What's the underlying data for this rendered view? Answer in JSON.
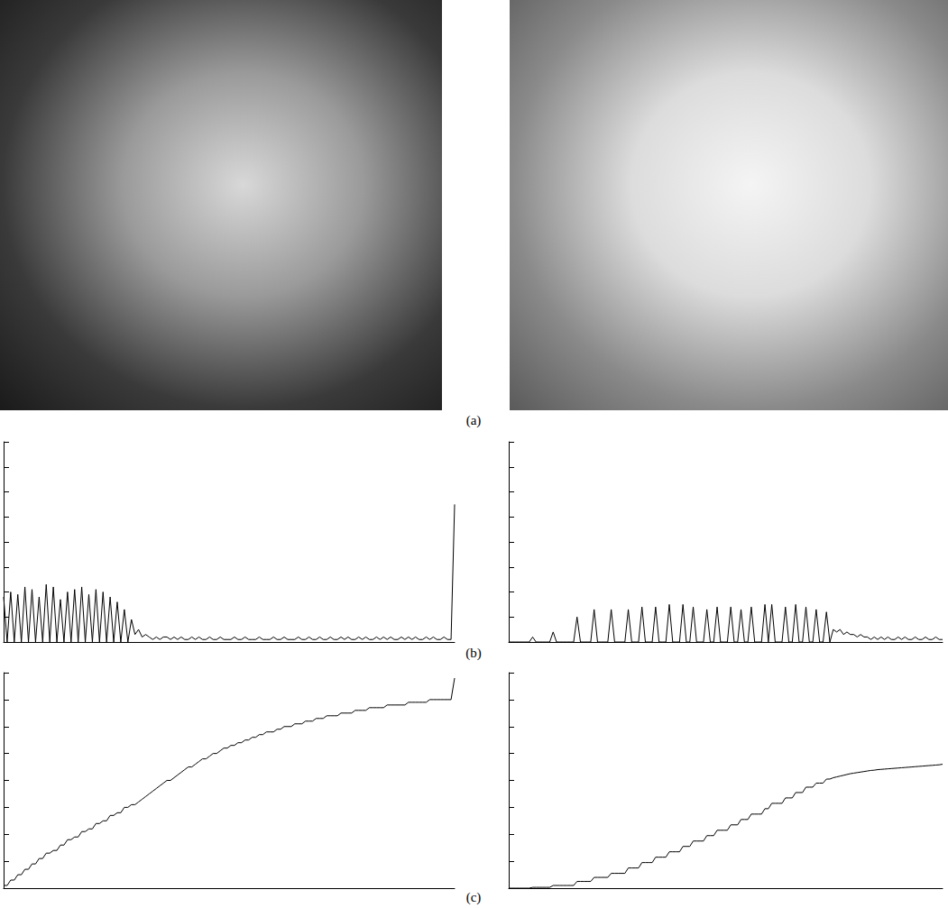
{
  "panel_labels": [
    "(a)",
    "(b)",
    "(c)"
  ],
  "chart_data": [
    {
      "type": "line",
      "color": "#000000",
      "grid": false,
      "tick_labels": false,
      "xlim": [
        0,
        254
      ],
      "ylim": [
        0,
        8
      ],
      "yticks": [
        0,
        1,
        2,
        3,
        4,
        5,
        6,
        7,
        8
      ],
      "x": [
        0,
        2,
        4,
        6,
        8,
        10,
        12,
        14,
        16,
        18,
        20,
        22,
        24,
        26,
        28,
        30,
        32,
        34,
        36,
        38,
        40,
        42,
        44,
        46,
        48,
        50,
        52,
        54,
        56,
        58,
        60,
        62,
        64,
        66,
        68,
        70,
        72,
        74,
        76,
        78,
        80,
        82,
        84,
        86,
        88,
        90,
        92,
        94,
        96,
        98,
        100,
        102,
        104,
        106,
        108,
        110,
        112,
        114,
        116,
        118,
        120,
        122,
        124,
        126,
        128,
        130,
        132,
        134,
        136,
        138,
        140,
        142,
        144,
        146,
        148,
        150,
        152,
        154,
        156,
        158,
        160,
        162,
        164,
        166,
        168,
        170,
        172,
        174,
        176,
        178,
        180,
        182,
        184,
        186,
        188,
        190,
        192,
        194,
        196,
        198,
        200,
        202,
        204,
        206,
        208,
        210,
        212,
        214,
        216,
        218,
        220,
        222,
        224,
        226,
        228,
        230,
        232,
        234,
        236,
        238,
        240,
        242,
        244,
        246,
        248,
        250,
        252,
        254
      ],
      "values": [
        1.8,
        0,
        2.0,
        0,
        1.9,
        0,
        2.2,
        0,
        2.1,
        0,
        1.8,
        0,
        2.3,
        0,
        2.2,
        0,
        1.7,
        0,
        2.0,
        0,
        2.1,
        0,
        2.2,
        0,
        1.9,
        0,
        2.1,
        0,
        2.0,
        0,
        1.8,
        0,
        1.6,
        0,
        1.3,
        0,
        0.9,
        0.3,
        0.5,
        0.2,
        0.3,
        0.2,
        0.1,
        0.2,
        0.1,
        0.2,
        0.2,
        0.1,
        0.2,
        0.1,
        0.2,
        0.1,
        0.1,
        0.2,
        0.1,
        0.2,
        0.1,
        0.1,
        0.2,
        0.1,
        0.1,
        0.2,
        0.1,
        0.1,
        0.1,
        0.2,
        0.1,
        0.1,
        0.2,
        0.1,
        0.1,
        0.1,
        0.2,
        0.1,
        0.1,
        0.1,
        0.2,
        0.1,
        0.1,
        0.2,
        0.1,
        0.1,
        0.1,
        0.2,
        0.1,
        0.1,
        0.2,
        0.1,
        0.1,
        0.2,
        0.1,
        0.1,
        0.2,
        0.1,
        0.1,
        0.2,
        0.1,
        0.2,
        0.1,
        0.1,
        0.2,
        0.1,
        0.2,
        0.1,
        0.1,
        0.2,
        0.1,
        0.2,
        0.1,
        0.2,
        0.1,
        0.1,
        0.2,
        0.1,
        0.2,
        0.1,
        0.2,
        0.1,
        0.1,
        0.2,
        0.1,
        0.2,
        0.1,
        0.1,
        0.2,
        0.1,
        0.1,
        5.5
      ]
    },
    {
      "type": "line",
      "color": "#000000",
      "grid": false,
      "tick_labels": false,
      "xlim": [
        0,
        254
      ],
      "ylim": [
        0,
        8
      ],
      "yticks": [
        0,
        1,
        2,
        3,
        4,
        5,
        6,
        7,
        8
      ],
      "x": [
        0,
        2,
        4,
        6,
        8,
        10,
        12,
        14,
        16,
        18,
        20,
        22,
        24,
        26,
        28,
        30,
        32,
        34,
        36,
        38,
        40,
        42,
        44,
        46,
        48,
        50,
        52,
        54,
        56,
        58,
        60,
        62,
        64,
        66,
        68,
        70,
        72,
        74,
        76,
        78,
        80,
        82,
        84,
        86,
        88,
        90,
        92,
        94,
        96,
        98,
        100,
        102,
        104,
        106,
        108,
        110,
        112,
        114,
        116,
        118,
        120,
        122,
        124,
        126,
        128,
        130,
        132,
        134,
        136,
        138,
        140,
        142,
        144,
        146,
        148,
        150,
        152,
        154,
        156,
        158,
        160,
        162,
        164,
        166,
        168,
        170,
        172,
        174,
        176,
        178,
        180,
        182,
        184,
        186,
        188,
        190,
        192,
        194,
        196,
        198,
        200,
        202,
        204,
        206,
        208,
        210,
        212,
        214,
        216,
        218,
        220,
        222,
        224,
        226,
        228,
        230,
        232,
        234,
        236,
        238,
        240,
        242,
        244,
        246,
        248,
        250,
        252,
        254
      ],
      "values": [
        0,
        0,
        0,
        0,
        0,
        0,
        0,
        0.2,
        0,
        0,
        0,
        0,
        0,
        0.4,
        0,
        0,
        0,
        0,
        0,
        0,
        1.0,
        0,
        0,
        0,
        0,
        1.3,
        0,
        0,
        0,
        0,
        1.3,
        0,
        0,
        0,
        0,
        1.3,
        0,
        0,
        0,
        1.4,
        0,
        0,
        0,
        1.4,
        0,
        0,
        0,
        1.5,
        0,
        0,
        0,
        1.5,
        0,
        0,
        1.4,
        0,
        0,
        0,
        1.3,
        0,
        0,
        1.4,
        0,
        0,
        0,
        1.4,
        0,
        0,
        1.3,
        0,
        0,
        1.4,
        0,
        0,
        0,
        1.5,
        0,
        1.5,
        0,
        0,
        0,
        1.4,
        0,
        0,
        1.5,
        0,
        0,
        1.4,
        0,
        0,
        1.3,
        0,
        0,
        1.2,
        0,
        0.5,
        0.4,
        0.5,
        0.3,
        0.4,
        0.3,
        0.3,
        0.2,
        0.3,
        0.2,
        0.2,
        0.1,
        0.2,
        0.1,
        0.2,
        0.1,
        0.2,
        0.1,
        0.1,
        0.2,
        0.1,
        0.2,
        0.1,
        0.1,
        0.2,
        0.1,
        0.1,
        0.2,
        0.1,
        0.1,
        0.2,
        0.1,
        0.1
      ]
    },
    {
      "type": "line",
      "color": "#000000",
      "grid": false,
      "tick_labels": false,
      "xlim": [
        0,
        254
      ],
      "ylim": [
        0,
        8
      ],
      "yticks": [
        0,
        1,
        2,
        3,
        4,
        5,
        6,
        7,
        8
      ],
      "x": [
        0,
        2,
        4,
        6,
        8,
        10,
        12,
        14,
        16,
        18,
        20,
        22,
        24,
        26,
        28,
        30,
        32,
        34,
        36,
        38,
        40,
        42,
        44,
        46,
        48,
        50,
        52,
        54,
        56,
        58,
        60,
        62,
        64,
        66,
        68,
        70,
        72,
        74,
        76,
        78,
        80,
        82,
        84,
        86,
        88,
        90,
        92,
        94,
        96,
        98,
        100,
        102,
        104,
        106,
        108,
        110,
        112,
        114,
        116,
        118,
        120,
        122,
        124,
        126,
        128,
        130,
        132,
        134,
        136,
        138,
        140,
        142,
        144,
        146,
        148,
        150,
        152,
        154,
        156,
        158,
        160,
        162,
        164,
        166,
        168,
        170,
        172,
        174,
        176,
        178,
        180,
        182,
        184,
        186,
        188,
        190,
        192,
        194,
        196,
        198,
        200,
        202,
        204,
        206,
        208,
        210,
        212,
        214,
        216,
        218,
        220,
        222,
        224,
        226,
        228,
        230,
        232,
        234,
        236,
        238,
        240,
        242,
        244,
        246,
        248,
        250,
        252,
        254
      ],
      "values": [
        0.1,
        0.1,
        0.3,
        0.3,
        0.5,
        0.5,
        0.7,
        0.7,
        0.9,
        0.9,
        1.1,
        1.1,
        1.3,
        1.3,
        1.4,
        1.4,
        1.6,
        1.6,
        1.8,
        1.8,
        1.9,
        1.9,
        2.1,
        2.1,
        2.2,
        2.2,
        2.4,
        2.4,
        2.5,
        2.5,
        2.7,
        2.7,
        2.8,
        2.8,
        3.0,
        3.0,
        3.1,
        3.1,
        3.2,
        3.3,
        3.4,
        3.5,
        3.6,
        3.7,
        3.8,
        3.9,
        4.0,
        4.0,
        4.1,
        4.2,
        4.3,
        4.4,
        4.5,
        4.5,
        4.6,
        4.7,
        4.8,
        4.8,
        4.9,
        5.0,
        5.0,
        5.1,
        5.2,
        5.2,
        5.3,
        5.3,
        5.4,
        5.4,
        5.5,
        5.5,
        5.6,
        5.6,
        5.7,
        5.7,
        5.8,
        5.8,
        5.8,
        5.9,
        5.9,
        6.0,
        6.0,
        6.0,
        6.1,
        6.1,
        6.1,
        6.2,
        6.2,
        6.2,
        6.3,
        6.3,
        6.3,
        6.4,
        6.4,
        6.4,
        6.4,
        6.5,
        6.5,
        6.5,
        6.5,
        6.6,
        6.6,
        6.6,
        6.6,
        6.7,
        6.7,
        6.7,
        6.7,
        6.7,
        6.8,
        6.8,
        6.8,
        6.8,
        6.8,
        6.8,
        6.9,
        6.9,
        6.9,
        6.9,
        6.9,
        6.9,
        7.0,
        7.0,
        7.0,
        7.0,
        7.0,
        7.0,
        7.0,
        7.8
      ]
    },
    {
      "type": "line",
      "color": "#000000",
      "grid": false,
      "tick_labels": false,
      "xlim": [
        0,
        254
      ],
      "ylim": [
        0,
        8
      ],
      "yticks": [
        0,
        1,
        2,
        3,
        4,
        5,
        6,
        7,
        8
      ],
      "x": [
        0,
        2,
        4,
        6,
        8,
        10,
        12,
        14,
        16,
        18,
        20,
        22,
        24,
        26,
        28,
        30,
        32,
        34,
        36,
        38,
        40,
        42,
        44,
        46,
        48,
        50,
        52,
        54,
        56,
        58,
        60,
        62,
        64,
        66,
        68,
        70,
        72,
        74,
        76,
        78,
        80,
        82,
        84,
        86,
        88,
        90,
        92,
        94,
        96,
        98,
        100,
        102,
        104,
        106,
        108,
        110,
        112,
        114,
        116,
        118,
        120,
        122,
        124,
        126,
        128,
        130,
        132,
        134,
        136,
        138,
        140,
        142,
        144,
        146,
        148,
        150,
        152,
        154,
        156,
        158,
        160,
        162,
        164,
        166,
        168,
        170,
        172,
        174,
        176,
        178,
        180,
        182,
        184,
        186,
        188,
        190,
        192,
        194,
        196,
        198,
        200,
        202,
        204,
        206,
        208,
        210,
        212,
        214,
        216,
        218,
        220,
        222,
        224,
        226,
        228,
        230,
        232,
        234,
        236,
        238,
        240,
        242,
        244,
        246,
        248,
        250,
        252,
        254
      ],
      "values": [
        0,
        0,
        0,
        0,
        0,
        0,
        0,
        0.03,
        0.03,
        0.03,
        0.03,
        0.03,
        0.03,
        0.1,
        0.1,
        0.1,
        0.1,
        0.1,
        0.1,
        0.1,
        0.25,
        0.25,
        0.25,
        0.25,
        0.25,
        0.4,
        0.4,
        0.4,
        0.4,
        0.4,
        0.55,
        0.55,
        0.55,
        0.55,
        0.55,
        0.75,
        0.75,
        0.75,
        0.75,
        0.95,
        0.95,
        0.95,
        0.95,
        1.15,
        1.15,
        1.15,
        1.15,
        1.35,
        1.35,
        1.35,
        1.35,
        1.55,
        1.55,
        1.55,
        1.75,
        1.75,
        1.75,
        1.75,
        1.95,
        1.95,
        1.95,
        2.15,
        2.15,
        2.15,
        2.15,
        2.35,
        2.35,
        2.35,
        2.55,
        2.55,
        2.55,
        2.75,
        2.75,
        2.75,
        2.75,
        2.95,
        2.95,
        3.15,
        3.15,
        3.15,
        3.15,
        3.35,
        3.35,
        3.35,
        3.55,
        3.55,
        3.55,
        3.75,
        3.75,
        3.75,
        3.9,
        3.9,
        3.9,
        4.05,
        4.05,
        4.1,
        4.13,
        4.16,
        4.19,
        4.22,
        4.25,
        4.27,
        4.29,
        4.31,
        4.33,
        4.35,
        4.37,
        4.38,
        4.4,
        4.41,
        4.42,
        4.43,
        4.44,
        4.45,
        4.46,
        4.47,
        4.48,
        4.49,
        4.5,
        4.51,
        4.52,
        4.53,
        4.54,
        4.55,
        4.56,
        4.57,
        4.58,
        4.6
      ]
    }
  ]
}
